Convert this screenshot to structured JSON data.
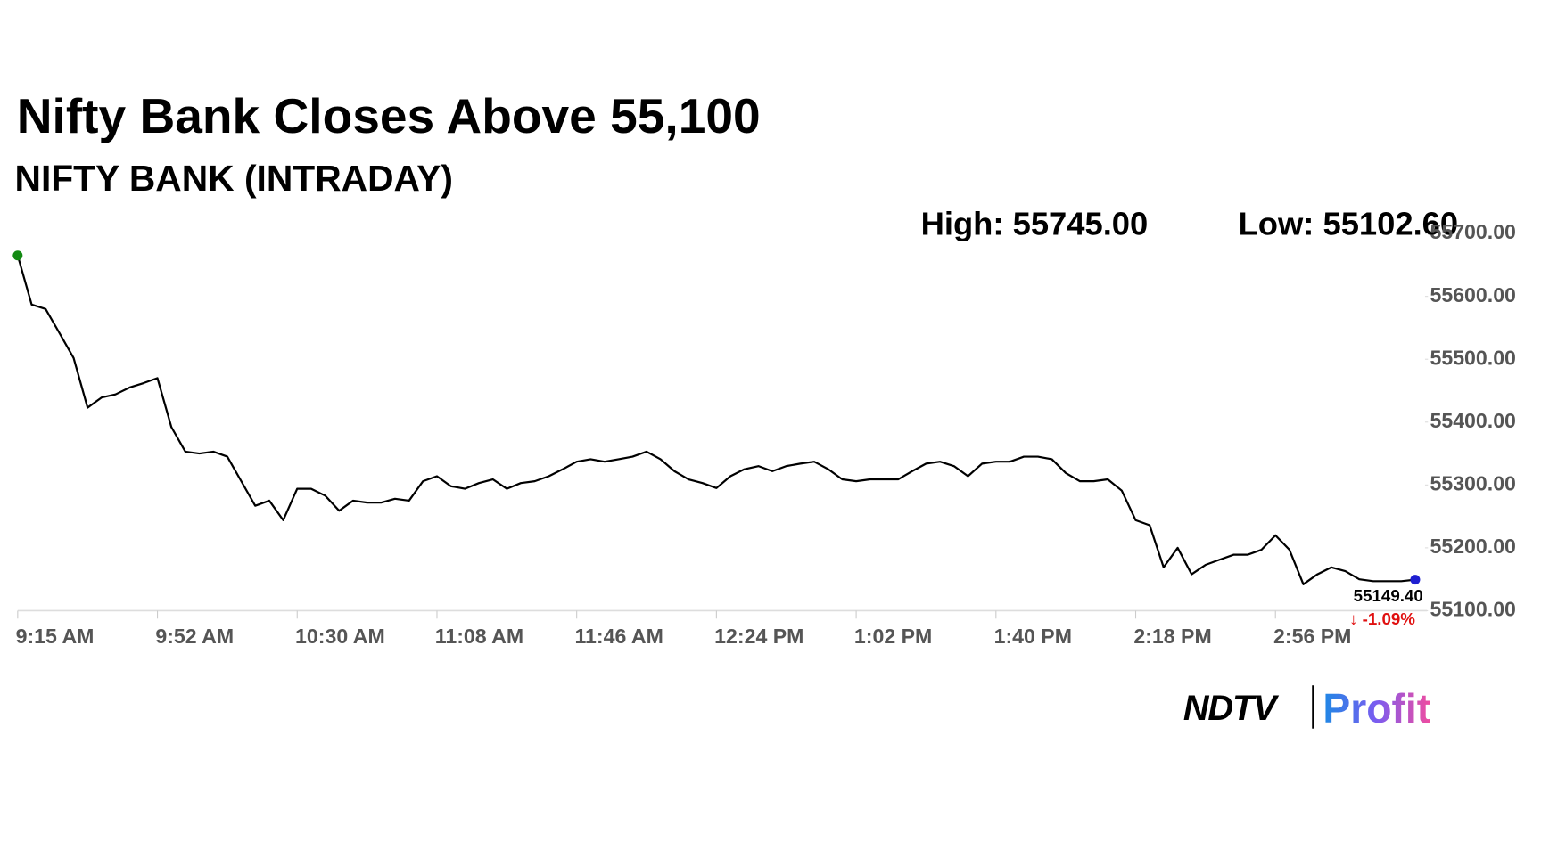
{
  "chart_data": {
    "type": "line",
    "title": "Nifty Bank Closes Above 55,100",
    "subtitle": "NIFTY BANK (INTRADAY)",
    "stats": [
      "High: 55745.00",
      "Low: 55102.60"
    ],
    "categories": [
      "9:15 AM",
      null,
      null,
      null,
      null,
      null,
      null,
      null,
      null,
      null,
      "9:52 AM",
      null,
      null,
      null,
      null,
      null,
      null,
      null,
      null,
      null,
      "10:30 AM",
      null,
      null,
      null,
      null,
      null,
      null,
      null,
      null,
      null,
      "11:08 AM",
      null,
      null,
      null,
      null,
      null,
      null,
      null,
      null,
      null,
      "11:46 AM",
      null,
      null,
      null,
      null,
      null,
      null,
      null,
      null,
      null,
      "12:24 PM",
      null,
      null,
      null,
      null,
      null,
      null,
      null,
      null,
      null,
      "1:02 PM",
      null,
      null,
      null,
      null,
      null,
      null,
      null,
      null,
      null,
      "1:40 PM",
      null,
      null,
      null,
      null,
      null,
      null,
      null,
      null,
      null,
      "2:18 PM",
      null,
      null,
      null,
      null,
      null,
      null,
      null,
      null,
      null,
      "2:56 PM",
      null,
      null,
      null,
      null,
      null,
      null,
      null,
      null,
      null,
      null
    ],
    "values": [
      55665,
      55587,
      55580,
      55541,
      55502,
      55423,
      55439,
      55444,
      55455,
      55462,
      55470,
      55392,
      55353,
      55350,
      55353,
      55345,
      55306,
      55267,
      55275,
      55244,
      55294,
      55294,
      55283,
      55259,
      55275,
      55272,
      55272,
      55278,
      55275,
      55306,
      55314,
      55298,
      55294,
      55303,
      55309,
      55294,
      55303,
      55306,
      55314,
      55325,
      55337,
      55341,
      55337,
      55341,
      55345,
      55353,
      55341,
      55322,
      55309,
      55303,
      55295,
      55314,
      55325,
      55330,
      55322,
      55330,
      55334,
      55337,
      55325,
      55309,
      55306,
      55309,
      55309,
      55309,
      55322,
      55334,
      55337,
      55330,
      55314,
      55334,
      55337,
      55337,
      55345,
      55345,
      55341,
      55319,
      55306,
      55306,
      55309,
      55291,
      55244,
      55236,
      55169,
      55200,
      55158,
      55173,
      55181,
      55189,
      55189,
      55197,
      55220,
      55197,
      55142,
      55158,
      55169,
      55163,
      55150,
      55147,
      55147,
      55147,
      55149.4
    ],
    "value_labels": [
      null,
      null,
      null,
      null,
      null,
      null,
      null,
      null,
      null,
      null,
      null,
      null,
      null,
      null,
      null,
      null,
      null,
      null,
      null,
      null,
      null,
      null,
      null,
      null,
      null,
      null,
      null,
      null,
      null,
      null,
      null,
      null,
      null,
      null,
      null,
      null,
      null,
      null,
      null,
      null,
      null,
      null,
      null,
      null,
      null,
      null,
      null,
      null,
      null,
      null,
      null,
      null,
      null,
      null,
      null,
      null,
      null,
      null,
      null,
      null,
      null,
      null,
      null,
      null,
      null,
      null,
      null,
      null,
      null,
      null,
      null,
      null,
      null,
      null,
      null,
      null,
      null,
      null,
      null,
      null,
      null,
      null,
      null,
      null,
      null,
      null,
      null,
      null,
      null,
      null,
      null,
      null,
      null,
      null,
      null,
      null,
      null,
      null,
      null,
      null,
      "55149.40"
    ],
    "change_label": "↓ -1.09%",
    "color": "#000000",
    "start_marker_color": "#138a13",
    "end_marker_color": "#1f1fd1",
    "change_color": "#e01010",
    "ylim": [
      55100,
      55745
    ],
    "yticks": [
      {
        "value": 55100,
        "label": "55100.00"
      },
      {
        "value": 55200,
        "label": "55200.00"
      },
      {
        "value": 55300,
        "label": "55300.00"
      },
      {
        "value": 55400,
        "label": "55400.00"
      },
      {
        "value": 55500,
        "label": "55500.00"
      },
      {
        "value": 55600,
        "label": "55600.00"
      },
      {
        "value": 55700,
        "label": "55700.00"
      }
    ],
    "logo": {
      "brand": "NDTV",
      "product": "Profit"
    }
  }
}
